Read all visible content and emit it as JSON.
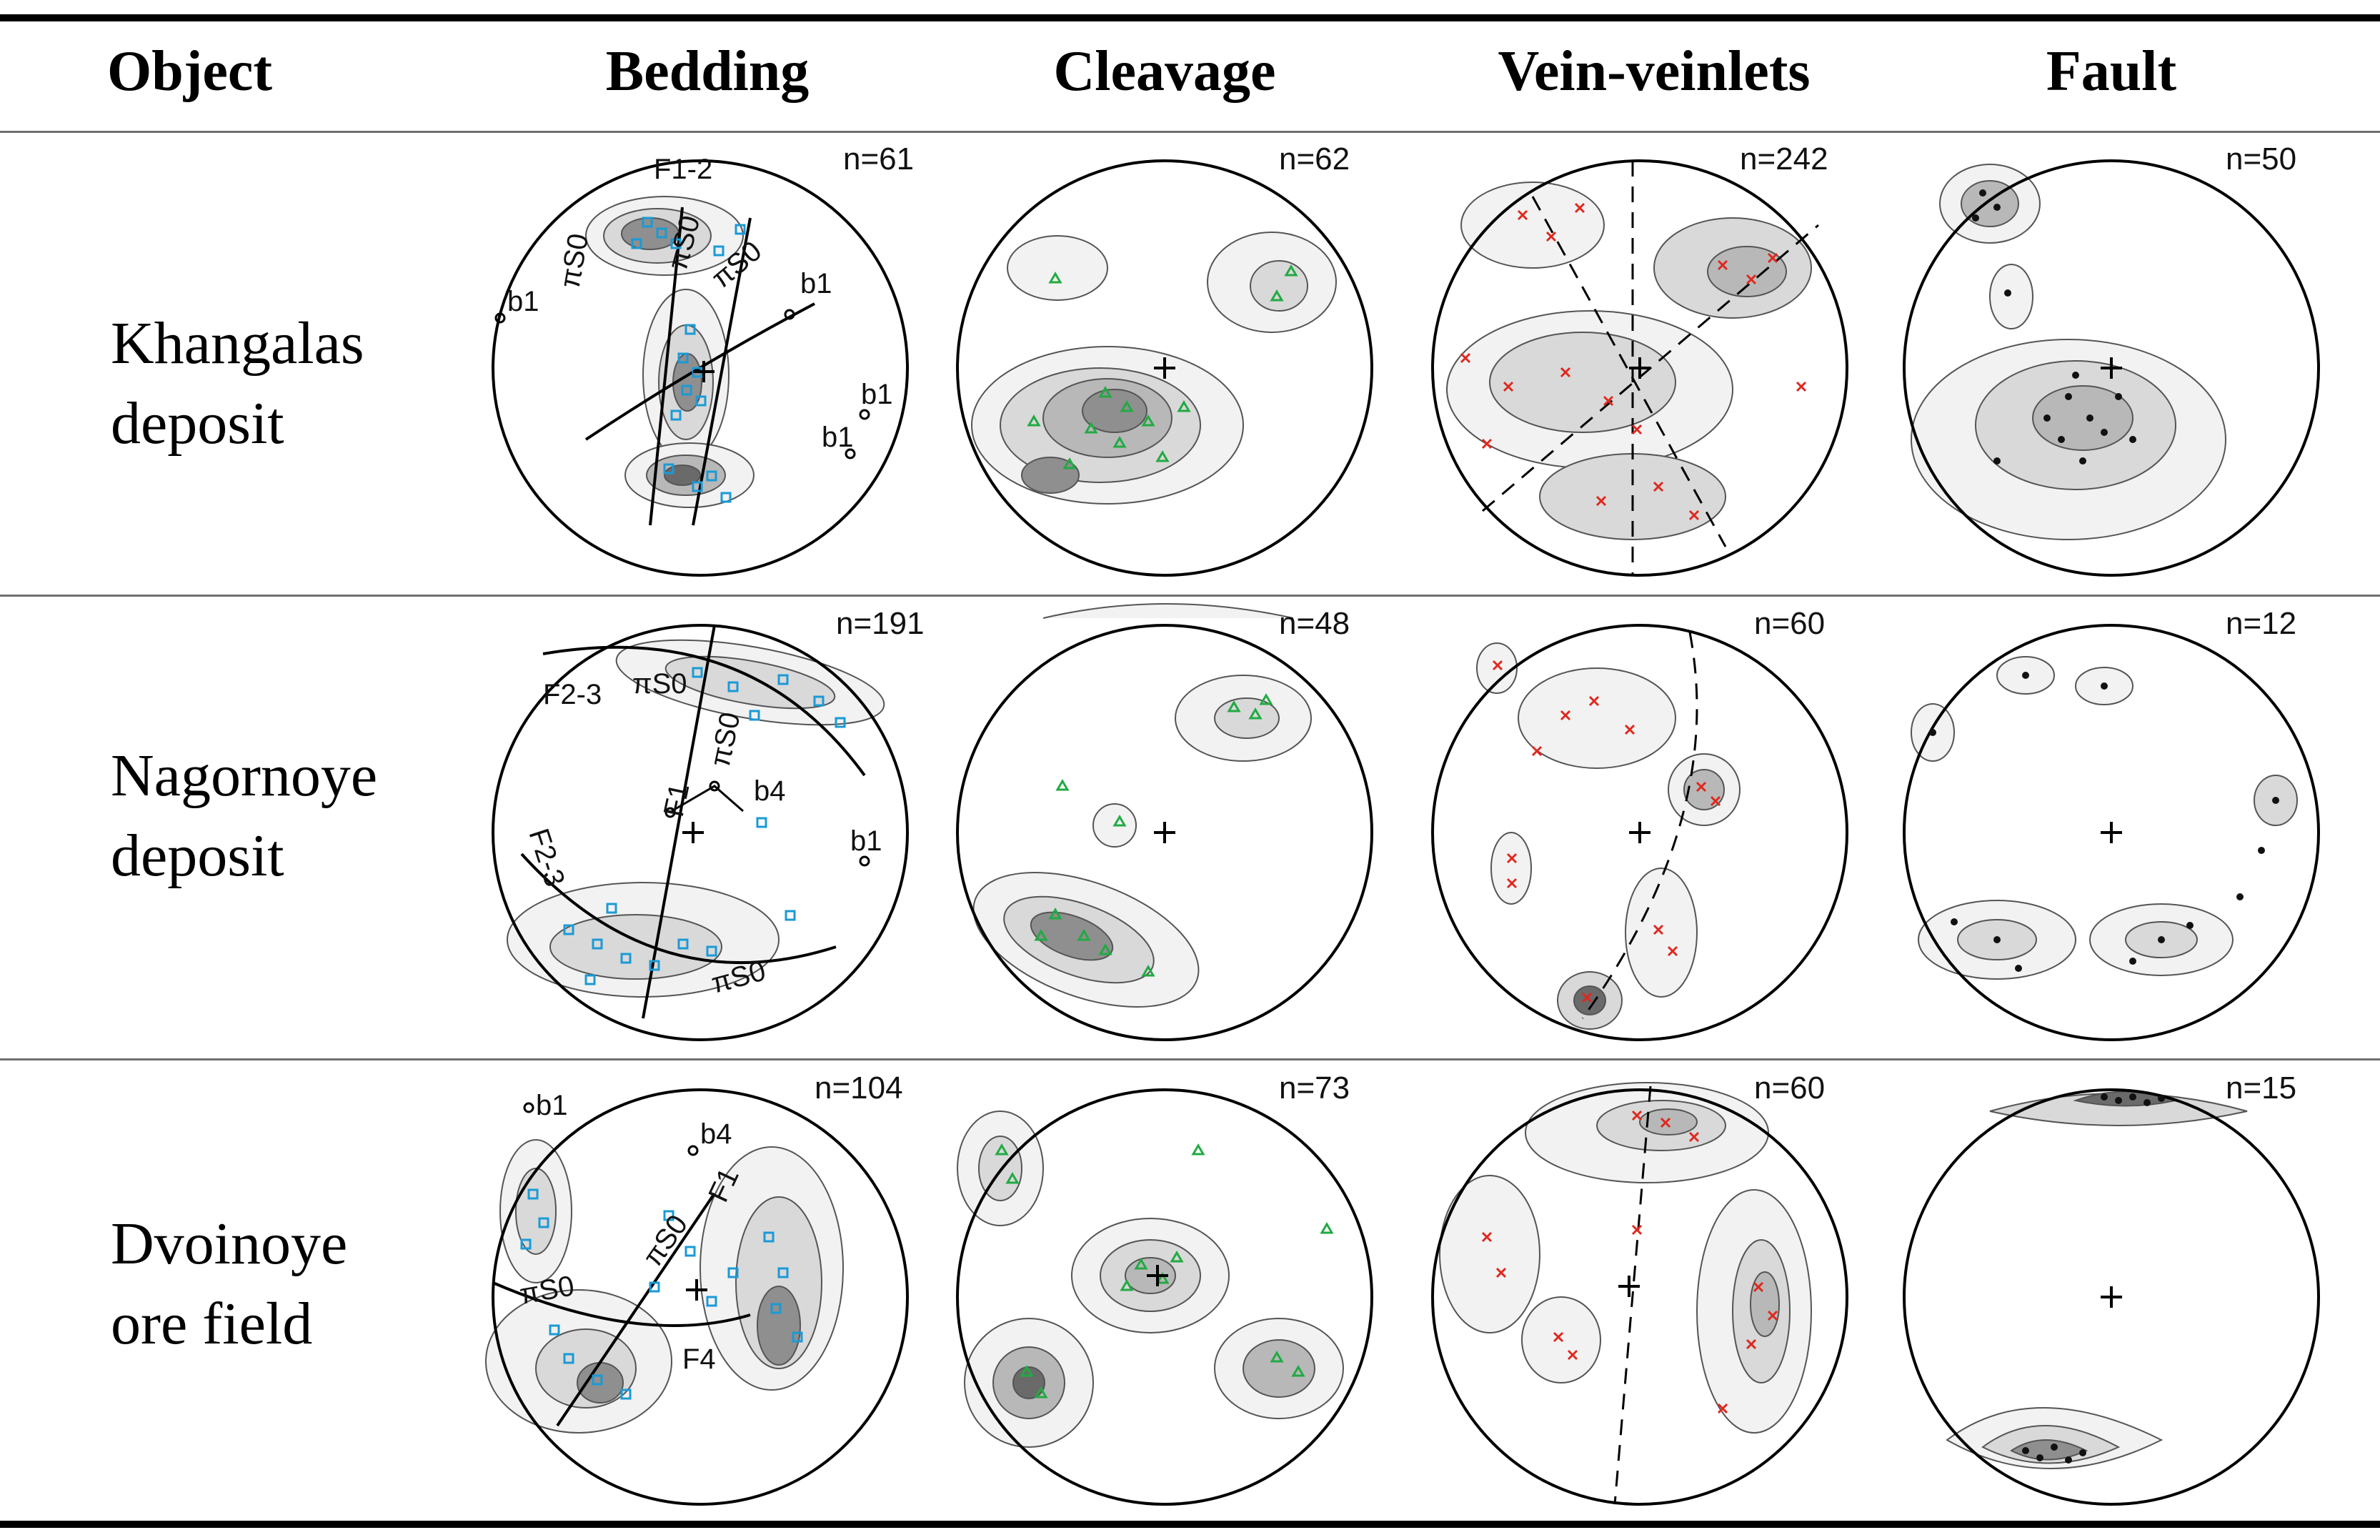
{
  "table": {
    "headers": [
      "Object",
      "Bedding",
      "Cleavage",
      "Vein-veinlets",
      "Fault"
    ],
    "rows": [
      {
        "label_line1": "Khangalas",
        "label_line2": "deposit",
        "n": [
          "n=61",
          "n=62",
          "n=242",
          "n=50"
        ],
        "bedding_labels": [
          "F1-2",
          "πS0",
          "πS0",
          "πS0",
          "b1",
          "b1",
          "b1",
          "b1"
        ]
      },
      {
        "label_line1": "Nagornoye",
        "label_line2": "deposit",
        "n": [
          "n=191",
          "n=48",
          "n=60",
          "n=12"
        ],
        "bedding_labels": [
          "F2-3",
          "πS0",
          "πS0",
          "F1",
          "b4",
          "b1",
          "F2-3",
          "πS0"
        ]
      },
      {
        "label_line1": "Dvoinoye",
        "label_line2": "ore field",
        "n": [
          "n=104",
          "n=73",
          "n=60",
          "n=15"
        ],
        "bedding_labels": [
          "b1",
          "b4",
          "πS0",
          "F1",
          "πS0",
          "F4"
        ]
      }
    ]
  },
  "colors": {
    "bedding_marker": "#1a9ad6",
    "cleavage_marker": "#22aa44",
    "vein_marker": "#e0281e",
    "fault_marker": "#111111",
    "contour_fill": [
      "#f2f2f2",
      "#d9d9d9",
      "#b8b8b8",
      "#8f8f8f",
      "#6a6a6a"
    ]
  },
  "icons": {
    "bedding": "square-marker-icon",
    "cleavage": "triangle-marker-icon",
    "vein": "cross-marker-icon",
    "fault": "dot-marker-icon"
  }
}
